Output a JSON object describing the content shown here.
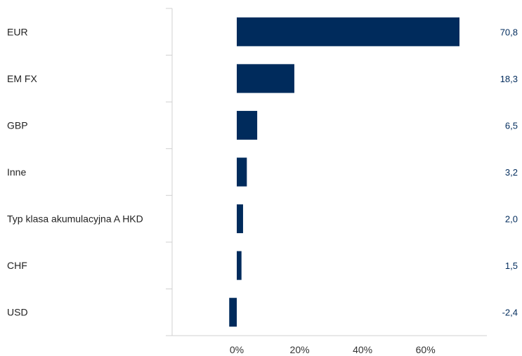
{
  "chart_data": {
    "type": "bar",
    "orientation": "horizontal",
    "title": "",
    "xlabel": "",
    "ylabel": "",
    "categories": [
      "EUR",
      "EM FX",
      "GBP",
      "Inne",
      "Typ klasa akumulacyjna A HKD",
      "CHF",
      "USD"
    ],
    "values": [
      70.8,
      18.3,
      6.5,
      3.2,
      2.0,
      1.5,
      -2.4
    ],
    "value_labels": [
      "70,8",
      "18,3",
      "6,5",
      "3,2",
      "2,0",
      "1,5",
      "-2,4"
    ],
    "xlim": [
      -20,
      80
    ],
    "xticks": [
      0,
      20,
      40,
      60
    ],
    "xtick_labels": [
      "0%",
      "20%",
      "40%",
      "60%"
    ],
    "grid": false,
    "legend": "none",
    "colors": {
      "bar": "#002b5c",
      "value_text": "#002b5c",
      "axis": "#d0d0d0"
    }
  }
}
